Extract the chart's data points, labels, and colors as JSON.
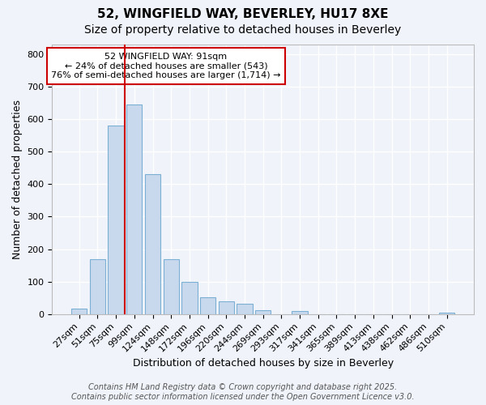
{
  "title1": "52, WINGFIELD WAY, BEVERLEY, HU17 8XE",
  "title2": "Size of property relative to detached houses in Beverley",
  "xlabel": "Distribution of detached houses by size in Beverley",
  "ylabel": "Number of detached properties",
  "categories": [
    "27sqm",
    "51sqm",
    "75sqm",
    "99sqm",
    "124sqm",
    "148sqm",
    "172sqm",
    "196sqm",
    "220sqm",
    "244sqm",
    "269sqm",
    "293sqm",
    "317sqm",
    "341sqm",
    "365sqm",
    "389sqm",
    "413sqm",
    "438sqm",
    "462sqm",
    "486sqm",
    "510sqm"
  ],
  "values": [
    18,
    168,
    580,
    645,
    430,
    170,
    100,
    52,
    40,
    33,
    12,
    0,
    10,
    0,
    0,
    0,
    0,
    0,
    0,
    0,
    5
  ],
  "bar_color": "#c8d9ee",
  "bar_edge_color": "#7bafd4",
  "vline_x": 2.5,
  "vline_color": "#cc0000",
  "annotation_text": "52 WINGFIELD WAY: 91sqm\n← 24% of detached houses are smaller (543)\n76% of semi-detached houses are larger (1,714) →",
  "annotation_box_color": "#ffffff",
  "annotation_box_edge": "#cc0000",
  "ylim": [
    0,
    830
  ],
  "yticks": [
    0,
    100,
    200,
    300,
    400,
    500,
    600,
    700,
    800
  ],
  "footer1": "Contains HM Land Registry data © Crown copyright and database right 2025.",
  "footer2": "Contains public sector information licensed under the Open Government Licence v3.0.",
  "bg_color": "#f0f4fa",
  "plot_bg_color": "#f0f4fa",
  "grid_color": "#ffffff",
  "title_fontsize": 11,
  "subtitle_fontsize": 10,
  "label_fontsize": 9,
  "tick_fontsize": 8,
  "footer_fontsize": 7,
  "annot_fontsize": 8
}
